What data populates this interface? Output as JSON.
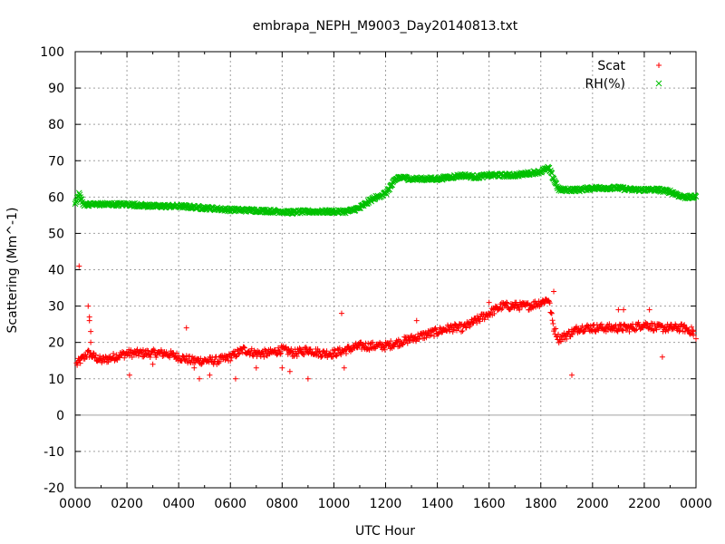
{
  "chart_data": {
    "type": "scatter",
    "title": "embrapa_NEPH_M9003_Day20140813.txt",
    "xlabel": "UTC Hour",
    "ylabel": "Scattering (Mm^-1)",
    "xlim": [
      0,
      24
    ],
    "ylim": [
      -20,
      100
    ],
    "x_ticks": [
      "0000",
      "0200",
      "0400",
      "0600",
      "0800",
      "1000",
      "1200",
      "1400",
      "1600",
      "1800",
      "2000",
      "2200",
      "0000"
    ],
    "y_ticks": [
      -20,
      -10,
      0,
      10,
      20,
      30,
      40,
      50,
      60,
      70,
      80,
      90,
      100
    ],
    "grid": true,
    "legend_position": "top-right",
    "zero_line": true,
    "series": [
      {
        "name": "Scat",
        "marker": "+",
        "color": "#ff0000",
        "trend": [
          [
            0.05,
            14
          ],
          [
            0.5,
            17
          ],
          [
            1.0,
            15
          ],
          [
            1.5,
            16
          ],
          [
            2.0,
            17
          ],
          [
            3.0,
            17
          ],
          [
            3.5,
            17
          ],
          [
            4.0,
            16
          ],
          [
            4.5,
            15
          ],
          [
            5.0,
            15
          ],
          [
            5.5,
            15
          ],
          [
            6.0,
            16
          ],
          [
            6.5,
            18
          ],
          [
            7.0,
            17
          ],
          [
            7.5,
            17
          ],
          [
            8.0,
            18
          ],
          [
            8.5,
            17
          ],
          [
            9.0,
            18
          ],
          [
            9.5,
            17
          ],
          [
            10.0,
            17
          ],
          [
            10.5,
            18
          ],
          [
            11.0,
            19
          ],
          [
            11.5,
            19
          ],
          [
            12.0,
            19
          ],
          [
            12.5,
            20
          ],
          [
            13.0,
            21
          ],
          [
            13.5,
            22
          ],
          [
            14.0,
            23
          ],
          [
            14.5,
            24
          ],
          [
            15.0,
            24
          ],
          [
            15.5,
            26
          ],
          [
            16.0,
            28
          ],
          [
            16.5,
            30
          ],
          [
            17.0,
            30
          ],
          [
            17.5,
            30
          ],
          [
            18.0,
            31
          ],
          [
            18.3,
            32
          ],
          [
            18.5,
            24
          ],
          [
            18.7,
            21
          ],
          [
            19.0,
            22
          ],
          [
            19.5,
            24
          ],
          [
            20.0,
            24
          ],
          [
            20.5,
            24
          ],
          [
            21.0,
            24
          ],
          [
            21.5,
            24
          ],
          [
            22.0,
            25
          ],
          [
            22.5,
            24
          ],
          [
            23.0,
            24
          ],
          [
            23.5,
            24
          ],
          [
            23.9,
            23
          ]
        ],
        "outliers": [
          [
            0.15,
            41
          ],
          [
            0.5,
            30
          ],
          [
            0.55,
            27
          ],
          [
            0.55,
            26
          ],
          [
            0.6,
            23
          ],
          [
            0.6,
            20
          ],
          [
            2.1,
            11
          ],
          [
            3.0,
            14
          ],
          [
            4.3,
            24
          ],
          [
            4.6,
            13
          ],
          [
            4.8,
            10
          ],
          [
            5.2,
            11
          ],
          [
            6.2,
            10
          ],
          [
            7.0,
            13
          ],
          [
            8.0,
            13
          ],
          [
            8.3,
            12
          ],
          [
            9.0,
            10
          ],
          [
            10.3,
            28
          ],
          [
            10.4,
            13
          ],
          [
            13.2,
            26
          ],
          [
            16.0,
            31
          ],
          [
            17.0,
            31
          ],
          [
            18.5,
            34
          ],
          [
            19.2,
            11
          ],
          [
            19.3,
            23
          ],
          [
            21.0,
            29
          ],
          [
            21.2,
            29
          ],
          [
            22.2,
            29
          ],
          [
            22.7,
            16
          ],
          [
            23.9,
            22
          ],
          [
            24.0,
            21
          ]
        ]
      },
      {
        "name": "RH(%)",
        "marker": "x",
        "color": "#00c000",
        "trend": [
          [
            0.0,
            58
          ],
          [
            0.15,
            61
          ],
          [
            0.3,
            58
          ],
          [
            1.0,
            58
          ],
          [
            2.0,
            58
          ],
          [
            3.0,
            57.5
          ],
          [
            4.0,
            57.5
          ],
          [
            5.0,
            57
          ],
          [
            6.0,
            56.5
          ],
          [
            7.0,
            56.3
          ],
          [
            8.0,
            56
          ],
          [
            8.3,
            55.8
          ],
          [
            9.0,
            56
          ],
          [
            10.0,
            56
          ],
          [
            10.5,
            56
          ],
          [
            11.0,
            57
          ],
          [
            11.5,
            59.5
          ],
          [
            12.0,
            61
          ],
          [
            12.3,
            64
          ],
          [
            12.5,
            65.5
          ],
          [
            13.0,
            65
          ],
          [
            13.5,
            65
          ],
          [
            14.0,
            65
          ],
          [
            14.5,
            65.5
          ],
          [
            15.0,
            66
          ],
          [
            15.5,
            65.5
          ],
          [
            16.0,
            66
          ],
          [
            16.5,
            66
          ],
          [
            17.0,
            66
          ],
          [
            17.5,
            66.5
          ],
          [
            18.0,
            67
          ],
          [
            18.3,
            68
          ],
          [
            18.5,
            65
          ],
          [
            18.7,
            62
          ],
          [
            19.0,
            62
          ],
          [
            19.5,
            62
          ],
          [
            20.0,
            62.5
          ],
          [
            20.5,
            62.5
          ],
          [
            21.0,
            62.5
          ],
          [
            21.5,
            62
          ],
          [
            22.0,
            62
          ],
          [
            22.5,
            62
          ],
          [
            23.0,
            61.5
          ],
          [
            23.5,
            60
          ],
          [
            24.0,
            60
          ]
        ]
      }
    ]
  }
}
